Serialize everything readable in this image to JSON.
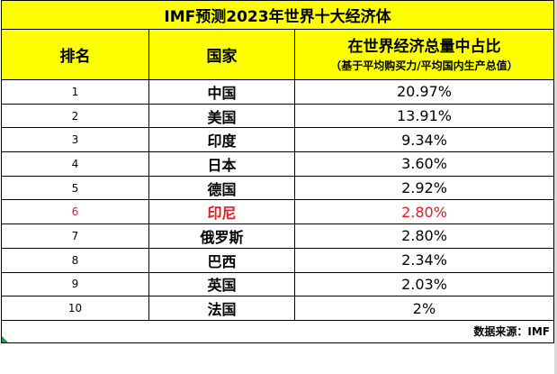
{
  "chart_data": {
    "type": "table",
    "title": "IMF预测2023年世界十大经济体",
    "headers": {
      "rank": "排名",
      "country": "国家",
      "share_main": "在世界经济总量中占比",
      "share_sub": "（基于平均购买力/平均国内生产总值）"
    },
    "rows": [
      {
        "rank": "1",
        "country": "中国",
        "share": "20.97%",
        "value": 20.97
      },
      {
        "rank": "2",
        "country": "美国",
        "share": "13.91%",
        "value": 13.91
      },
      {
        "rank": "3",
        "country": "印度",
        "share": "9.34%",
        "value": 9.34
      },
      {
        "rank": "4",
        "country": "日本",
        "share": "3.60%",
        "value": 3.6
      },
      {
        "rank": "5",
        "country": "德国",
        "share": "2.92%",
        "value": 2.92
      },
      {
        "rank": "6",
        "country": "印尼",
        "share": "2.80%",
        "value": 2.8,
        "highlight": true
      },
      {
        "rank": "7",
        "country": "俄罗斯",
        "share": "2.80%",
        "value": 2.8
      },
      {
        "rank": "8",
        "country": "巴西",
        "share": "2.34%",
        "value": 2.34
      },
      {
        "rank": "9",
        "country": "英国",
        "share": "2.03%",
        "value": 2.03
      },
      {
        "rank": "10",
        "country": "法国",
        "share": "2%",
        "value": 2
      }
    ],
    "source": "数据来源：IMF"
  },
  "colors": {
    "header_background": "#ffff00",
    "highlight_text": "#e8181e",
    "border": "#000000"
  }
}
